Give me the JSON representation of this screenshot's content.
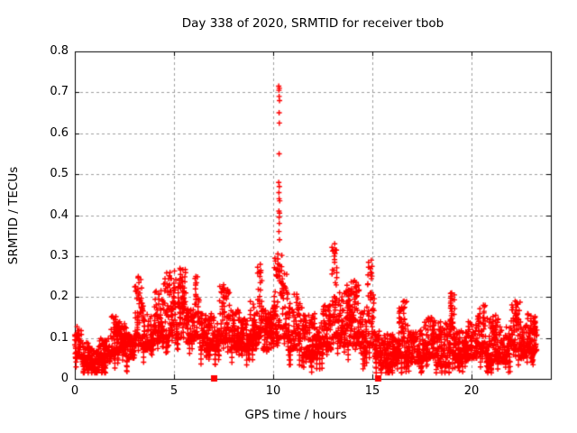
{
  "window": {
    "background": "#ffffff"
  },
  "chart_data": {
    "type": "scatter",
    "title": "Day 338 of 2020, SRMTID for receiver tbob",
    "xlabel": "GPS time / hours",
    "ylabel": "SRMTID / TECUs",
    "xlim": [
      0,
      24
    ],
    "ylim": [
      0,
      0.8
    ],
    "xticks": [
      0,
      5,
      10,
      15,
      20
    ],
    "yticks": [
      0,
      0.1,
      0.2,
      0.3,
      0.4,
      0.5,
      0.6,
      0.7,
      0.8
    ],
    "grid": true,
    "legend": "none",
    "marker": "plus",
    "colors": {
      "marker": "#ff0000",
      "grid": "#a0a0a0",
      "axis": "#000000",
      "text": "#000000"
    },
    "band_segments_format": "x_start_hours, x_end_hours, y_min_TECUs, y_max_TECUs (dense band envelope read from pixels)",
    "band_segments": [
      [
        0.0,
        0.35,
        0.05,
        0.13
      ],
      [
        0.35,
        0.8,
        0.03,
        0.09
      ],
      [
        0.8,
        1.2,
        0.02,
        0.08
      ],
      [
        1.2,
        1.8,
        0.04,
        0.1
      ],
      [
        1.8,
        2.1,
        0.06,
        0.16
      ],
      [
        2.1,
        2.6,
        0.07,
        0.14
      ],
      [
        2.6,
        3.0,
        0.05,
        0.11
      ],
      [
        3.0,
        3.45,
        0.08,
        0.25
      ],
      [
        3.45,
        4.0,
        0.07,
        0.16
      ],
      [
        4.0,
        4.4,
        0.09,
        0.22
      ],
      [
        4.4,
        5.0,
        0.1,
        0.26
      ],
      [
        5.0,
        5.6,
        0.1,
        0.27
      ],
      [
        5.6,
        6.0,
        0.09,
        0.18
      ],
      [
        6.0,
        6.3,
        0.1,
        0.25
      ],
      [
        6.3,
        7.05,
        0.07,
        0.16
      ],
      [
        7.05,
        7.3,
        0.07,
        0.14
      ],
      [
        7.3,
        7.8,
        0.09,
        0.23
      ],
      [
        7.8,
        8.3,
        0.07,
        0.17
      ],
      [
        8.3,
        8.8,
        0.07,
        0.15
      ],
      [
        8.8,
        9.2,
        0.08,
        0.19
      ],
      [
        9.2,
        9.45,
        0.1,
        0.28
      ],
      [
        9.45,
        9.8,
        0.07,
        0.17
      ],
      [
        9.8,
        10.05,
        0.08,
        0.18
      ],
      [
        10.05,
        10.45,
        0.1,
        0.31
      ],
      [
        10.45,
        10.75,
        0.1,
        0.26
      ],
      [
        10.75,
        11.05,
        0.07,
        0.2
      ],
      [
        11.05,
        11.45,
        0.07,
        0.21
      ],
      [
        11.45,
        12.1,
        0.05,
        0.16
      ],
      [
        12.1,
        12.5,
        0.06,
        0.14
      ],
      [
        12.5,
        12.95,
        0.07,
        0.18
      ],
      [
        12.95,
        13.25,
        0.1,
        0.33
      ],
      [
        13.25,
        13.8,
        0.08,
        0.23
      ],
      [
        13.8,
        14.4,
        0.08,
        0.24
      ],
      [
        14.4,
        14.75,
        0.06,
        0.18
      ],
      [
        14.75,
        15.1,
        0.08,
        0.29
      ],
      [
        15.1,
        15.35,
        0.05,
        0.12
      ],
      [
        15.35,
        16.3,
        0.03,
        0.11
      ],
      [
        16.3,
        16.8,
        0.05,
        0.19
      ],
      [
        16.8,
        17.6,
        0.04,
        0.12
      ],
      [
        17.6,
        18.2,
        0.05,
        0.15
      ],
      [
        18.2,
        18.9,
        0.03,
        0.14
      ],
      [
        18.9,
        19.15,
        0.06,
        0.21
      ],
      [
        19.15,
        19.7,
        0.05,
        0.12
      ],
      [
        19.7,
        20.3,
        0.05,
        0.14
      ],
      [
        20.3,
        20.75,
        0.06,
        0.18
      ],
      [
        20.75,
        21.35,
        0.04,
        0.16
      ],
      [
        21.35,
        21.95,
        0.04,
        0.13
      ],
      [
        21.95,
        22.45,
        0.07,
        0.19
      ],
      [
        22.45,
        22.8,
        0.05,
        0.14
      ],
      [
        22.8,
        23.3,
        0.06,
        0.16
      ]
    ],
    "peaks_format": "x_hours, y_max_TECUs (local maxima columns)",
    "peaks": [
      [
        3.2,
        0.25
      ],
      [
        4.8,
        0.26
      ],
      [
        5.3,
        0.27
      ],
      [
        6.1,
        0.25
      ],
      [
        7.5,
        0.23
      ],
      [
        9.35,
        0.28
      ],
      [
        13.1,
        0.33
      ],
      [
        14.1,
        0.24
      ],
      [
        14.95,
        0.29
      ],
      [
        16.6,
        0.19
      ],
      [
        19.0,
        0.21
      ],
      [
        20.6,
        0.18
      ],
      [
        22.2,
        0.19
      ]
    ],
    "outlier_spike_points": [
      [
        10.28,
        0.715
      ],
      [
        10.31,
        0.71
      ],
      [
        10.29,
        0.705
      ],
      [
        10.3,
        0.69
      ],
      [
        10.32,
        0.68
      ],
      [
        10.3,
        0.65
      ],
      [
        10.31,
        0.625
      ],
      [
        10.3,
        0.55
      ],
      [
        10.28,
        0.48
      ],
      [
        10.31,
        0.47
      ],
      [
        10.29,
        0.455
      ],
      [
        10.3,
        0.44
      ],
      [
        10.33,
        0.435
      ],
      [
        10.29,
        0.41
      ],
      [
        10.32,
        0.405
      ],
      [
        10.3,
        0.395
      ],
      [
        10.31,
        0.38
      ],
      [
        10.29,
        0.36
      ],
      [
        10.32,
        0.34
      ]
    ],
    "zero_points": [
      [
        7.0,
        0.0
      ],
      [
        15.27,
        0.0
      ]
    ],
    "points_per_hour": 120
  }
}
